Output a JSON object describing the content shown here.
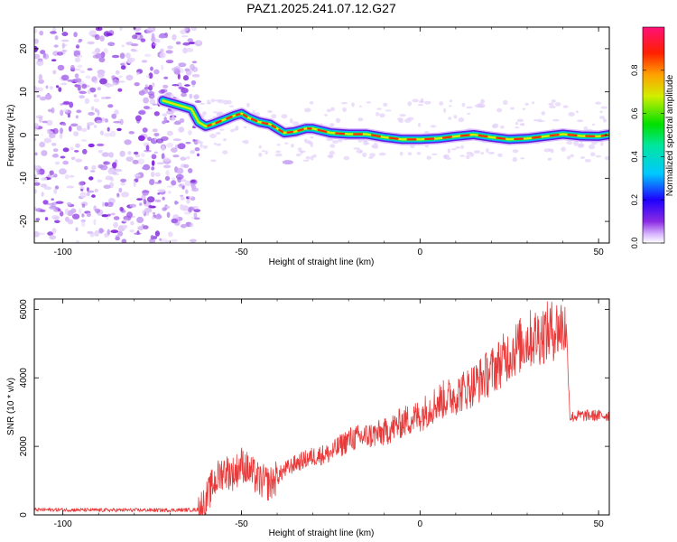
{
  "title": "PAZ1.2025.241.07.12.G27",
  "colors": {
    "snr_line": "#e83a3a",
    "axis": "#000000"
  },
  "chart_data": [
    {
      "type": "heatmap",
      "name": "spectrogram",
      "xlabel": "Height of straight line (km)",
      "ylabel": "Frequency (Hz)",
      "xlim": [
        -108,
        53
      ],
      "ylim": [
        -25,
        25
      ],
      "xticks": [
        -100,
        -50,
        0,
        50
      ],
      "yticks": [
        -20,
        -10,
        0,
        10,
        20
      ],
      "colorbar": {
        "label": "Normalized spectral amplitude",
        "range": [
          0,
          1
        ],
        "ticks": [
          0.0,
          0.2,
          0.4,
          0.6,
          0.8
        ],
        "tick_labels": [
          "0.0",
          "0.2",
          "0.4",
          "0.6",
          "0.8"
        ]
      },
      "noise_region_km": [
        -108,
        -62
      ],
      "ridge": {
        "height_km": [
          -72,
          -70,
          -66,
          -64,
          -62,
          -60,
          -58,
          -55,
          -52,
          -50,
          -48,
          -45,
          -42,
          -40,
          -38,
          -35,
          -32,
          -30,
          -25,
          -20,
          -15,
          -10,
          -5,
          0,
          5,
          10,
          15,
          20,
          25,
          30,
          35,
          40,
          45,
          50,
          53
        ],
        "frequency_hz": [
          8,
          7.5,
          6.5,
          6,
          3,
          2,
          2.5,
          3.5,
          4.5,
          5,
          4,
          3,
          2.5,
          1.5,
          0.5,
          0.8,
          1.5,
          1.5,
          0.5,
          0.2,
          0.2,
          -0.5,
          -1,
          -1,
          -0.8,
          -0.3,
          0.1,
          -0.5,
          -1,
          -0.8,
          -0.3,
          0.2,
          -0.2,
          -0.3,
          0.1
        ]
      }
    },
    {
      "type": "line",
      "name": "snr",
      "xlabel": "Height of straight line (km)",
      "ylabel": "SNR (10 * v/v)",
      "xlim": [
        -108,
        53
      ],
      "ylim": [
        0,
        6300
      ],
      "xticks": [
        -100,
        -50,
        0,
        50
      ],
      "yticks": [
        0,
        2000,
        4000,
        6000
      ],
      "series": [
        {
          "name": "SNR",
          "x": [
            -108,
            -100,
            -90,
            -80,
            -70,
            -62,
            -60,
            -58,
            -55,
            -52,
            -50,
            -48,
            -45,
            -42,
            -40,
            -38,
            -35,
            -30,
            -25,
            -20,
            -15,
            -10,
            -5,
            0,
            5,
            10,
            15,
            20,
            25,
            30,
            35,
            40,
            41,
            42,
            45,
            50,
            53
          ],
          "y": [
            150,
            150,
            140,
            140,
            140,
            150,
            400,
            900,
            1300,
            1200,
            1500,
            1300,
            1000,
            900,
            1100,
            1300,
            1500,
            1700,
            1800,
            2200,
            2300,
            2400,
            2700,
            2900,
            3300,
            3500,
            3800,
            4200,
            4700,
            5100,
            5300,
            5500,
            5400,
            2850,
            2900,
            2900,
            2900
          ]
        }
      ]
    }
  ]
}
